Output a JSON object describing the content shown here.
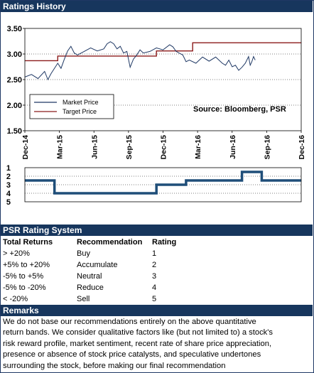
{
  "sections": {
    "ratings_history": "Ratings History",
    "rating_system": "PSR Rating System",
    "remarks": "Remarks"
  },
  "chart_data": [
    {
      "type": "line",
      "ylim": [
        1.5,
        3.5
      ],
      "yticks": [
        "3.50",
        "3.00",
        "2.50",
        "2.00",
        "1.50"
      ],
      "ytick_values": [
        3.5,
        3.0,
        2.5,
        2.0,
        1.5
      ],
      "x_tick_labels": [
        "Dec-14",
        "Mar-15",
        "Jun-15",
        "Sep-15",
        "Dec-15",
        "Mar-16",
        "Jun-16",
        "Sep-16",
        "Dec-16"
      ],
      "annotation": "Source: Bloomberg, PSR",
      "grid": true,
      "legend": "left",
      "series": [
        {
          "name": "Market Price",
          "color": "#1f3864",
          "points": [
            [
              0,
              2.55
            ],
            [
              2,
              2.6
            ],
            [
              4,
              2.52
            ],
            [
              6,
              2.66
            ],
            [
              7,
              2.5
            ],
            [
              8,
              2.62
            ],
            [
              10,
              2.82
            ],
            [
              11,
              2.72
            ],
            [
              12,
              2.9
            ],
            [
              13,
              3.06
            ],
            [
              14,
              3.15
            ],
            [
              15,
              3.02
            ],
            [
              16,
              2.98
            ],
            [
              18,
              3.05
            ],
            [
              20,
              3.12
            ],
            [
              22,
              3.06
            ],
            [
              24,
              3.1
            ],
            [
              25,
              3.2
            ],
            [
              26,
              3.24
            ],
            [
              27,
              3.2
            ],
            [
              28,
              3.1
            ],
            [
              29,
              3.15
            ],
            [
              30,
              3.02
            ],
            [
              31,
              3.05
            ],
            [
              32,
              2.74
            ],
            [
              33,
              2.9
            ],
            [
              34,
              2.98
            ],
            [
              35,
              3.08
            ],
            [
              36,
              3.02
            ],
            [
              38,
              3.05
            ],
            [
              40,
              3.12
            ],
            [
              42,
              3.08
            ],
            [
              44,
              3.18
            ],
            [
              45,
              3.14
            ],
            [
              46,
              3.05
            ],
            [
              48,
              2.98
            ],
            [
              49,
              2.85
            ],
            [
              50,
              2.88
            ],
            [
              52,
              2.82
            ],
            [
              54,
              2.94
            ],
            [
              56,
              2.86
            ],
            [
              58,
              2.94
            ],
            [
              60,
              2.82
            ],
            [
              61,
              2.78
            ],
            [
              62,
              2.88
            ],
            [
              63,
              2.75
            ],
            [
              64,
              2.78
            ],
            [
              65,
              2.68
            ],
            [
              66,
              2.74
            ],
            [
              67,
              2.82
            ],
            [
              68,
              2.95
            ],
            [
              68.5,
              2.78
            ],
            [
              69,
              2.85
            ],
            [
              69.5,
              2.95
            ],
            [
              70,
              2.88
            ]
          ]
        },
        {
          "name": "Target Price",
          "color": "#8b1a1a",
          "points": [
            [
              0,
              2.87
            ],
            [
              10,
              2.87
            ],
            [
              10,
              2.96
            ],
            [
              40,
              2.96
            ],
            [
              40,
              3.06
            ],
            [
              51,
              3.06
            ],
            [
              51,
              3.22
            ],
            [
              84,
              3.22
            ]
          ]
        }
      ]
    },
    {
      "type": "line",
      "ylim": [
        1,
        5
      ],
      "yticks": [
        "1",
        "2",
        "3",
        "4",
        "5"
      ],
      "ytick_values": [
        1,
        2,
        3,
        4,
        5
      ],
      "inverted": true,
      "series": [
        {
          "name": "",
          "color": "#1f4e79",
          "points": [
            [
              0,
              2.5
            ],
            [
              9,
              2.5
            ],
            [
              9,
              4
            ],
            [
              40,
              4
            ],
            [
              40,
              3
            ],
            [
              49,
              3
            ],
            [
              49,
              2.5
            ],
            [
              66,
              2.5
            ],
            [
              66,
              1.5
            ],
            [
              72,
              1.5
            ],
            [
              72,
              2.5
            ],
            [
              84,
              2.5
            ]
          ]
        }
      ]
    }
  ],
  "rating_system": {
    "headers": [
      "Total Returns",
      "Recommendation",
      "Rating"
    ],
    "rows": [
      [
        "> +20%",
        "Buy",
        "1"
      ],
      [
        "+5% to +20%",
        "Accumulate",
        "2"
      ],
      [
        "-5% to +5%",
        "Neutral",
        "3"
      ],
      [
        "-5% to -20%",
        "Reduce",
        "4"
      ],
      [
        "< -20%",
        "Sell",
        "5"
      ]
    ]
  },
  "remarks": {
    "lines": [
      "We do not base our recommendations entirely on the  above quantitative",
      "return bands.  We consider qualitative factors like (but not limited to) a stock's",
      "risk reward profile, market sentiment, recent rate of share price appreciation,",
      "presence or absence of stock price catalysts, and speculative undertones",
      "surrounding the stock, before making our final recommendation"
    ]
  },
  "colors": {
    "header_bg": "#17365d",
    "market": "#1f3864",
    "target": "#8b1a1a",
    "rating": "#1f4e79"
  }
}
